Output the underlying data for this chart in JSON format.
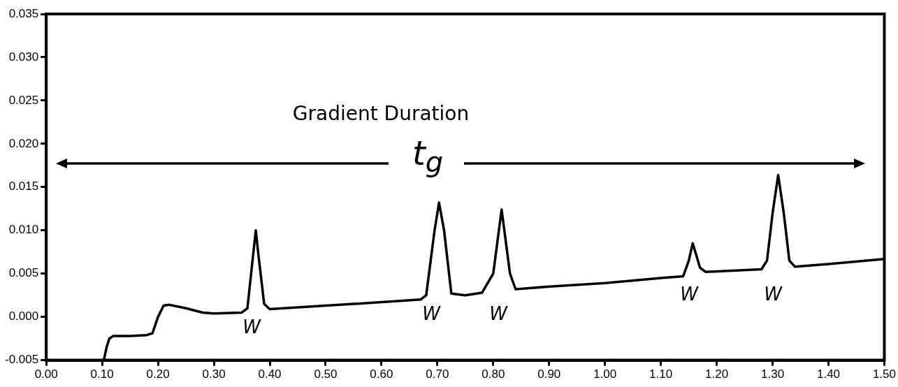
{
  "chart_data": {
    "type": "line",
    "x": [
      0.103,
      0.108,
      0.113,
      0.12,
      0.15,
      0.18,
      0.19,
      0.2,
      0.21,
      0.22,
      0.25,
      0.28,
      0.3,
      0.35,
      0.36,
      0.37,
      0.375,
      0.38,
      0.39,
      0.4,
      0.5,
      0.6,
      0.67,
      0.68,
      0.695,
      0.703,
      0.712,
      0.725,
      0.75,
      0.78,
      0.8,
      0.815,
      0.83,
      0.84,
      0.9,
      1.0,
      1.1,
      1.14,
      1.15,
      1.157,
      1.17,
      1.18,
      1.28,
      1.29,
      1.3,
      1.31,
      1.32,
      1.33,
      1.34,
      1.4,
      1.5
    ],
    "series": [
      {
        "color": "#000000",
        "values": [
          -0.005,
          -0.0035,
          -0.0025,
          -0.0022,
          -0.0022,
          -0.0021,
          -0.0019,
          0.0,
          0.0013,
          0.0014,
          0.001,
          0.0005,
          0.0004,
          0.0005,
          0.001,
          0.007,
          0.01,
          0.007,
          0.0015,
          0.0009,
          0.0013,
          0.0017,
          0.002,
          0.0025,
          0.01,
          0.0132,
          0.01,
          0.0027,
          0.0025,
          0.0028,
          0.005,
          0.0124,
          0.005,
          0.0032,
          0.0035,
          0.0039,
          0.0045,
          0.0047,
          0.0065,
          0.0085,
          0.0057,
          0.0052,
          0.0055,
          0.0065,
          0.012,
          0.0164,
          0.012,
          0.0065,
          0.0058,
          0.0061,
          0.0067
        ]
      }
    ],
    "xlim": [
      0,
      1.5
    ],
    "xticks": [
      {
        "value": 0,
        "label": "0.00"
      },
      {
        "value": 0.1,
        "label": "0.10"
      },
      {
        "value": 0.2,
        "label": "0.20"
      },
      {
        "value": 0.3,
        "label": "0.30"
      },
      {
        "value": 0.4,
        "label": "0.40"
      },
      {
        "value": 0.5,
        "label": "0.50"
      },
      {
        "value": 0.6,
        "label": "0.60"
      },
      {
        "value": 0.7,
        "label": "0.70"
      },
      {
        "value": 0.8,
        "label": "0.80"
      },
      {
        "value": 0.9,
        "label": "0.90"
      },
      {
        "value": 1.0,
        "label": "1.00"
      },
      {
        "value": 1.1,
        "label": "1.10"
      },
      {
        "value": 1.2,
        "label": "1.20"
      },
      {
        "value": 1.3,
        "label": "1.30"
      },
      {
        "value": 1.4,
        "label": "1.40"
      },
      {
        "value": 1.5,
        "label": "1.50"
      }
    ],
    "ylim": [
      -0.005,
      0.035
    ],
    "yticks": [
      {
        "value": -0.005,
        "label": "-0.005"
      },
      {
        "value": 0,
        "label": "0.000"
      },
      {
        "value": 0.005,
        "label": "0.005"
      },
      {
        "value": 0.01,
        "label": "0.010"
      },
      {
        "value": 0.015,
        "label": "0.015"
      },
      {
        "value": 0.02,
        "label": "0.020"
      },
      {
        "value": 0.025,
        "label": "0.025"
      },
      {
        "value": 0.03,
        "label": "0.030"
      },
      {
        "value": 0.035,
        "label": "0.035"
      }
    ],
    "grid": false,
    "legend": false,
    "marker": "none",
    "line_style": "solid",
    "annotations": [
      "Gradient Duration",
      "t$_{g}$",
      "W",
      "W",
      "W",
      "W",
      "W"
    ]
  }
}
